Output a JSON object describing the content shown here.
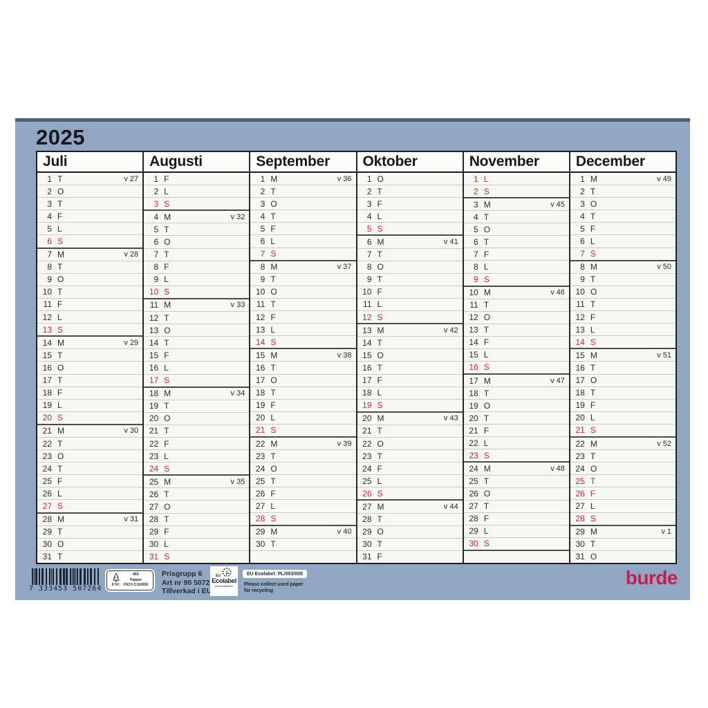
{
  "year": "2025",
  "colors": {
    "red_day": "#c22b31",
    "logo_red": "#c41e56",
    "sheet_blue": "#91a7c1"
  },
  "months": [
    {
      "name": "Juli",
      "days": [
        [
          1,
          "T",
          "v 27",
          0,
          0
        ],
        [
          2,
          "O",
          "",
          0,
          0
        ],
        [
          3,
          "T",
          "",
          0,
          0
        ],
        [
          4,
          "F",
          "",
          0,
          0
        ],
        [
          5,
          "L",
          "",
          0,
          0
        ],
        [
          6,
          "S",
          "",
          1,
          1
        ],
        [
          7,
          "M",
          "v 28",
          0,
          0
        ],
        [
          8,
          "T",
          "",
          0,
          0
        ],
        [
          9,
          "O",
          "",
          0,
          0
        ],
        [
          10,
          "T",
          "",
          0,
          0
        ],
        [
          11,
          "F",
          "",
          0,
          0
        ],
        [
          12,
          "L",
          "",
          0,
          0
        ],
        [
          13,
          "S",
          "",
          1,
          1
        ],
        [
          14,
          "M",
          "v 29",
          0,
          0
        ],
        [
          15,
          "T",
          "",
          0,
          0
        ],
        [
          16,
          "O",
          "",
          0,
          0
        ],
        [
          17,
          "T",
          "",
          0,
          0
        ],
        [
          18,
          "F",
          "",
          0,
          0
        ],
        [
          19,
          "L",
          "",
          0,
          0
        ],
        [
          20,
          "S",
          "",
          1,
          1
        ],
        [
          21,
          "M",
          "v 30",
          0,
          0
        ],
        [
          22,
          "T",
          "",
          0,
          0
        ],
        [
          23,
          "O",
          "",
          0,
          0
        ],
        [
          24,
          "T",
          "",
          0,
          0
        ],
        [
          25,
          "F",
          "",
          0,
          0
        ],
        [
          26,
          "L",
          "",
          0,
          0
        ],
        [
          27,
          "S",
          "",
          1,
          1
        ],
        [
          28,
          "M",
          "v 31",
          0,
          0
        ],
        [
          29,
          "T",
          "",
          0,
          0
        ],
        [
          30,
          "O",
          "",
          0,
          0
        ],
        [
          31,
          "T",
          "",
          0,
          0
        ]
      ]
    },
    {
      "name": "Augusti",
      "days": [
        [
          1,
          "F",
          "",
          0,
          0
        ],
        [
          2,
          "L",
          "",
          0,
          0
        ],
        [
          3,
          "S",
          "",
          1,
          1
        ],
        [
          4,
          "M",
          "v 32",
          0,
          0
        ],
        [
          5,
          "T",
          "",
          0,
          0
        ],
        [
          6,
          "O",
          "",
          0,
          0
        ],
        [
          7,
          "T",
          "",
          0,
          0
        ],
        [
          8,
          "F",
          "",
          0,
          0
        ],
        [
          9,
          "L",
          "",
          0,
          0
        ],
        [
          10,
          "S",
          "",
          1,
          1
        ],
        [
          11,
          "M",
          "v 33",
          0,
          0
        ],
        [
          12,
          "T",
          "",
          0,
          0
        ],
        [
          13,
          "O",
          "",
          0,
          0
        ],
        [
          14,
          "T",
          "",
          0,
          0
        ],
        [
          15,
          "F",
          "",
          0,
          0
        ],
        [
          16,
          "L",
          "",
          0,
          0
        ],
        [
          17,
          "S",
          "",
          1,
          1
        ],
        [
          18,
          "M",
          "v 34",
          0,
          0
        ],
        [
          19,
          "T",
          "",
          0,
          0
        ],
        [
          20,
          "O",
          "",
          0,
          0
        ],
        [
          21,
          "T",
          "",
          0,
          0
        ],
        [
          22,
          "F",
          "",
          0,
          0
        ],
        [
          23,
          "L",
          "",
          0,
          0
        ],
        [
          24,
          "S",
          "",
          1,
          1
        ],
        [
          25,
          "M",
          "v 35",
          0,
          0
        ],
        [
          26,
          "T",
          "",
          0,
          0
        ],
        [
          27,
          "O",
          "",
          0,
          0
        ],
        [
          28,
          "T",
          "",
          0,
          0
        ],
        [
          29,
          "F",
          "",
          0,
          0
        ],
        [
          30,
          "L",
          "",
          0,
          0
        ],
        [
          31,
          "S",
          "",
          1,
          0
        ]
      ]
    },
    {
      "name": "September",
      "days": [
        [
          1,
          "M",
          "v 36",
          0,
          0
        ],
        [
          2,
          "T",
          "",
          0,
          0
        ],
        [
          3,
          "O",
          "",
          0,
          0
        ],
        [
          4,
          "T",
          "",
          0,
          0
        ],
        [
          5,
          "F",
          "",
          0,
          0
        ],
        [
          6,
          "L",
          "",
          0,
          0
        ],
        [
          7,
          "S",
          "",
          1,
          1
        ],
        [
          8,
          "M",
          "v 37",
          0,
          0
        ],
        [
          9,
          "T",
          "",
          0,
          0
        ],
        [
          10,
          "O",
          "",
          0,
          0
        ],
        [
          11,
          "T",
          "",
          0,
          0
        ],
        [
          12,
          "F",
          "",
          0,
          0
        ],
        [
          13,
          "L",
          "",
          0,
          0
        ],
        [
          14,
          "S",
          "",
          1,
          1
        ],
        [
          15,
          "M",
          "v 38",
          0,
          0
        ],
        [
          16,
          "T",
          "",
          0,
          0
        ],
        [
          17,
          "O",
          "",
          0,
          0
        ],
        [
          18,
          "T",
          "",
          0,
          0
        ],
        [
          19,
          "F",
          "",
          0,
          0
        ],
        [
          20,
          "L",
          "",
          0,
          0
        ],
        [
          21,
          "S",
          "",
          1,
          1
        ],
        [
          22,
          "M",
          "v 39",
          0,
          0
        ],
        [
          23,
          "T",
          "",
          0,
          0
        ],
        [
          24,
          "O",
          "",
          0,
          0
        ],
        [
          25,
          "T",
          "",
          0,
          0
        ],
        [
          26,
          "F",
          "",
          0,
          0
        ],
        [
          27,
          "L",
          "",
          0,
          0
        ],
        [
          28,
          "S",
          "",
          1,
          1
        ],
        [
          29,
          "M",
          "v 40",
          0,
          0
        ],
        [
          30,
          "T",
          "",
          0,
          0
        ],
        [
          "",
          "",
          "",
          0,
          0
        ]
      ]
    },
    {
      "name": "Oktober",
      "days": [
        [
          1,
          "O",
          "",
          0,
          0
        ],
        [
          2,
          "T",
          "",
          0,
          0
        ],
        [
          3,
          "F",
          "",
          0,
          0
        ],
        [
          4,
          "L",
          "",
          0,
          0
        ],
        [
          5,
          "S",
          "",
          1,
          1
        ],
        [
          6,
          "M",
          "v 41",
          0,
          0
        ],
        [
          7,
          "T",
          "",
          0,
          0
        ],
        [
          8,
          "O",
          "",
          0,
          0
        ],
        [
          9,
          "T",
          "",
          0,
          0
        ],
        [
          10,
          "F",
          "",
          0,
          0
        ],
        [
          11,
          "L",
          "",
          0,
          0
        ],
        [
          12,
          "S",
          "",
          1,
          1
        ],
        [
          13,
          "M",
          "v 42",
          0,
          0
        ],
        [
          14,
          "T",
          "",
          0,
          0
        ],
        [
          15,
          "O",
          "",
          0,
          0
        ],
        [
          16,
          "T",
          "",
          0,
          0
        ],
        [
          17,
          "F",
          "",
          0,
          0
        ],
        [
          18,
          "L",
          "",
          0,
          0
        ],
        [
          19,
          "S",
          "",
          1,
          1
        ],
        [
          20,
          "M",
          "v 43",
          0,
          0
        ],
        [
          21,
          "T",
          "",
          0,
          0
        ],
        [
          22,
          "O",
          "",
          0,
          0
        ],
        [
          23,
          "T",
          "",
          0,
          0
        ],
        [
          24,
          "F",
          "",
          0,
          0
        ],
        [
          25,
          "L",
          "",
          0,
          0
        ],
        [
          26,
          "S",
          "",
          1,
          1
        ],
        [
          27,
          "M",
          "v 44",
          0,
          0
        ],
        [
          28,
          "T",
          "",
          0,
          0
        ],
        [
          29,
          "O",
          "",
          0,
          0
        ],
        [
          30,
          "T",
          "",
          0,
          0
        ],
        [
          31,
          "F",
          "",
          0,
          0
        ]
      ]
    },
    {
      "name": "November",
      "days": [
        [
          1,
          "L",
          "",
          1,
          0
        ],
        [
          2,
          "S",
          "",
          1,
          1
        ],
        [
          3,
          "M",
          "v 45",
          0,
          0
        ],
        [
          4,
          "T",
          "",
          0,
          0
        ],
        [
          5,
          "O",
          "",
          0,
          0
        ],
        [
          6,
          "T",
          "",
          0,
          0
        ],
        [
          7,
          "F",
          "",
          0,
          0
        ],
        [
          8,
          "L",
          "",
          0,
          0
        ],
        [
          9,
          "S",
          "",
          1,
          1
        ],
        [
          10,
          "M",
          "v 46",
          0,
          0
        ],
        [
          11,
          "T",
          "",
          0,
          0
        ],
        [
          12,
          "O",
          "",
          0,
          0
        ],
        [
          13,
          "T",
          "",
          0,
          0
        ],
        [
          14,
          "F",
          "",
          0,
          0
        ],
        [
          15,
          "L",
          "",
          0,
          0
        ],
        [
          16,
          "S",
          "",
          1,
          1
        ],
        [
          17,
          "M",
          "v 47",
          0,
          0
        ],
        [
          18,
          "T",
          "",
          0,
          0
        ],
        [
          19,
          "O",
          "",
          0,
          0
        ],
        [
          20,
          "T",
          "",
          0,
          0
        ],
        [
          21,
          "F",
          "",
          0,
          0
        ],
        [
          22,
          "L",
          "",
          0,
          0
        ],
        [
          23,
          "S",
          "",
          1,
          1
        ],
        [
          24,
          "M",
          "v 48",
          0,
          0
        ],
        [
          25,
          "T",
          "",
          0,
          0
        ],
        [
          26,
          "O",
          "",
          0,
          0
        ],
        [
          27,
          "T",
          "",
          0,
          0
        ],
        [
          28,
          "F",
          "",
          0,
          0
        ],
        [
          29,
          "L",
          "",
          0,
          0
        ],
        [
          30,
          "S",
          "",
          1,
          1
        ],
        [
          "",
          "",
          "",
          0,
          0
        ]
      ]
    },
    {
      "name": "December",
      "days": [
        [
          1,
          "M",
          "v 49",
          0,
          0
        ],
        [
          2,
          "T",
          "",
          0,
          0
        ],
        [
          3,
          "O",
          "",
          0,
          0
        ],
        [
          4,
          "T",
          "",
          0,
          0
        ],
        [
          5,
          "F",
          "",
          0,
          0
        ],
        [
          6,
          "L",
          "",
          0,
          0
        ],
        [
          7,
          "S",
          "",
          1,
          1
        ],
        [
          8,
          "M",
          "v 50",
          0,
          0
        ],
        [
          9,
          "T",
          "",
          0,
          0
        ],
        [
          10,
          "O",
          "",
          0,
          0
        ],
        [
          11,
          "T",
          "",
          0,
          0
        ],
        [
          12,
          "F",
          "",
          0,
          0
        ],
        [
          13,
          "L",
          "",
          0,
          0
        ],
        [
          14,
          "S",
          "",
          1,
          1
        ],
        [
          15,
          "M",
          "v 51",
          0,
          0
        ],
        [
          16,
          "T",
          "",
          0,
          0
        ],
        [
          17,
          "O",
          "",
          0,
          0
        ],
        [
          18,
          "T",
          "",
          0,
          0
        ],
        [
          19,
          "F",
          "",
          0,
          0
        ],
        [
          20,
          "L",
          "",
          0,
          0
        ],
        [
          21,
          "S",
          "",
          1,
          1
        ],
        [
          22,
          "M",
          "v 52",
          0,
          0
        ],
        [
          23,
          "T",
          "",
          0,
          0
        ],
        [
          24,
          "O",
          "",
          0,
          0
        ],
        [
          25,
          "T",
          "",
          1,
          0
        ],
        [
          26,
          "F",
          "",
          1,
          0
        ],
        [
          27,
          "L",
          "",
          0,
          0
        ],
        [
          28,
          "S",
          "",
          1,
          1
        ],
        [
          29,
          "M",
          "v 1",
          0,
          0
        ],
        [
          30,
          "T",
          "",
          0,
          0
        ],
        [
          31,
          "O",
          "",
          0,
          0
        ]
      ]
    }
  ],
  "footer": {
    "barcode_digits": "7 333453 507264",
    "fsc": {
      "brand": "FSC",
      "line1": "MIX",
      "line2": "Papper",
      "line3": "FSC® C102650"
    },
    "print_info": {
      "line1": "Prisgrupp 6",
      "line2": "Art nr 90 5072 26",
      "line3": "Tillverkad i EU"
    },
    "ecolabel": {
      "eu": "EU",
      "brand": "Ecolabel",
      "url": "www.ecolabel.eu"
    },
    "eco_license": "EU Ecolabel: PL/053/005",
    "eco_note_line1": "Please collect used paper",
    "eco_note_line2": "for recycling",
    "logo": "burde"
  }
}
